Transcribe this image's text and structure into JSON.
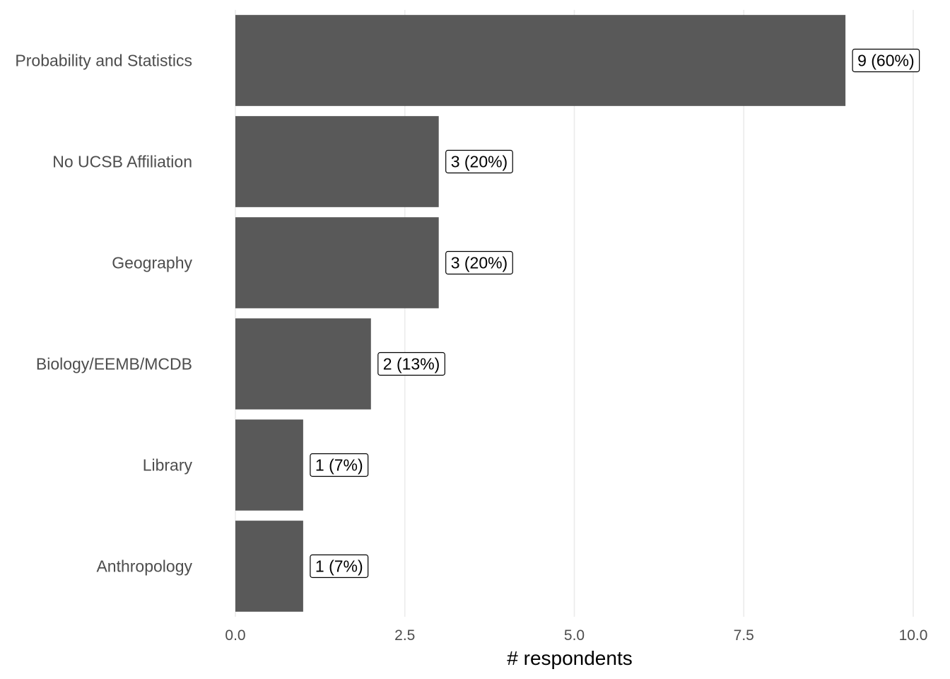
{
  "chart_data": {
    "type": "bar",
    "orientation": "horizontal",
    "categories": [
      "Probability and Statistics",
      "No UCSB Affiliation",
      "Geography",
      "Biology/EEMB/MCDB",
      "Library",
      "Anthropology"
    ],
    "values": [
      9,
      3,
      3,
      2,
      1,
      1
    ],
    "data_labels": [
      "9 (60%)",
      "3 (20%)",
      "3 (20%)",
      "2 (13%)",
      "1 (7%)",
      "1 (7%)"
    ],
    "title": "",
    "xlabel": "# respondents",
    "ylabel": "",
    "xlim": [
      0,
      10
    ],
    "x_ticks": [
      0,
      2.5,
      5,
      7.5,
      10
    ],
    "x_tick_labels": [
      "0.0",
      "2.5",
      "5.0",
      "7.5",
      "10.0"
    ],
    "grid": "vertical major",
    "legend": "none",
    "bar_color": "#595959",
    "grid_color": "#ebebeb"
  }
}
